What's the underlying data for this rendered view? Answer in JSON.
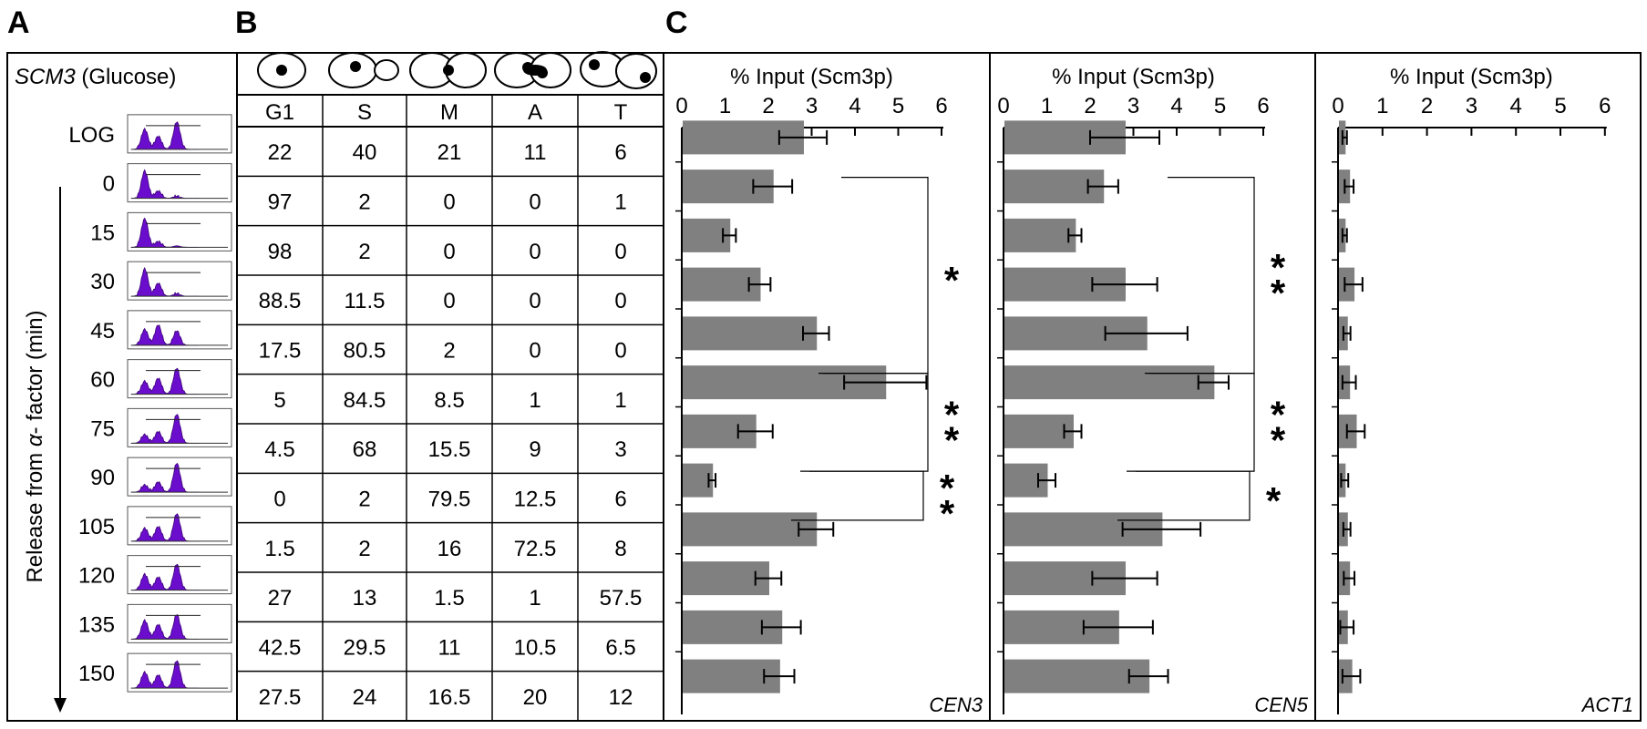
{
  "panel_letters": {
    "a": "A",
    "b": "B",
    "c": "C"
  },
  "panel_a": {
    "title_gene": "SCM3",
    "title_condition": " (Glucose)",
    "ylabel_pre": "Release from ",
    "ylabel_symbol": "α",
    "ylabel_post": "- factor (min)",
    "row_labels": [
      "LOG",
      "0",
      "15",
      "30",
      "45",
      "60",
      "75",
      "90",
      "105",
      "120",
      "135",
      "150"
    ],
    "histogram_color": "#6a0dcc",
    "facs_profiles": [
      [
        [
          0.08,
          0.7
        ],
        [
          0.16,
          0.45
        ],
        [
          0.27,
          0.95
        ]
      ],
      [
        [
          0.08,
          0.95
        ],
        [
          0.16,
          0.25
        ],
        [
          0.27,
          0.08
        ]
      ],
      [
        [
          0.08,
          1.0
        ],
        [
          0.16,
          0.2
        ],
        [
          0.27,
          0.05
        ]
      ],
      [
        [
          0.08,
          0.95
        ],
        [
          0.16,
          0.45
        ],
        [
          0.27,
          0.1
        ]
      ],
      [
        [
          0.08,
          0.55
        ],
        [
          0.16,
          0.7
        ],
        [
          0.27,
          0.5
        ]
      ],
      [
        [
          0.08,
          0.45
        ],
        [
          0.16,
          0.55
        ],
        [
          0.27,
          0.9
        ]
      ],
      [
        [
          0.08,
          0.3
        ],
        [
          0.16,
          0.4
        ],
        [
          0.27,
          1.0
        ]
      ],
      [
        [
          0.08,
          0.25
        ],
        [
          0.16,
          0.35
        ],
        [
          0.27,
          1.0
        ]
      ],
      [
        [
          0.08,
          0.45
        ],
        [
          0.16,
          0.5
        ],
        [
          0.27,
          0.95
        ]
      ],
      [
        [
          0.08,
          0.55
        ],
        [
          0.16,
          0.45
        ],
        [
          0.27,
          0.9
        ]
      ],
      [
        [
          0.08,
          0.65
        ],
        [
          0.16,
          0.5
        ],
        [
          0.27,
          0.85
        ]
      ],
      [
        [
          0.08,
          0.55
        ],
        [
          0.16,
          0.45
        ],
        [
          0.27,
          0.95
        ]
      ]
    ]
  },
  "panel_b": {
    "columns": [
      "G1",
      "S",
      "M",
      "A",
      "T"
    ],
    "rows": [
      [
        "22",
        "40",
        "21",
        "11",
        "6"
      ],
      [
        "97",
        "2",
        "0",
        "0",
        "1"
      ],
      [
        "98",
        "2",
        "0",
        "0",
        "0"
      ],
      [
        "88.5",
        "11.5",
        "0",
        "0",
        "0"
      ],
      [
        "17.5",
        "80.5",
        "2",
        "0",
        "0"
      ],
      [
        "5",
        "84.5",
        "8.5",
        "1",
        "1"
      ],
      [
        "4.5",
        "68",
        "15.5",
        "9",
        "3"
      ],
      [
        "0",
        "2",
        "79.5",
        "12.5",
        "6"
      ],
      [
        "1.5",
        "2",
        "16",
        "72.5",
        "8"
      ],
      [
        "27",
        "13",
        "1.5",
        "1",
        "57.5"
      ],
      [
        "42.5",
        "29.5",
        "11",
        "10.5",
        "6.5"
      ],
      [
        "27.5",
        "24",
        "16.5",
        "20",
        "12"
      ]
    ]
  },
  "chart_data": [
    {
      "type": "bar",
      "orientation": "horizontal",
      "title": "% Input (Scm3p)",
      "panel_label": "CEN3",
      "categories": [
        "LOG",
        "0",
        "15",
        "30",
        "45",
        "60",
        "75",
        "90",
        "105",
        "120",
        "135",
        "150"
      ],
      "values": [
        2.8,
        2.1,
        1.1,
        1.8,
        3.1,
        4.7,
        1.7,
        0.7,
        3.1,
        2.0,
        2.3,
        2.25
      ],
      "errors": [
        0.55,
        0.45,
        0.15,
        0.25,
        0.3,
        0.95,
        0.4,
        0.08,
        0.4,
        0.3,
        0.45,
        0.35
      ],
      "xlim": [
        0,
        6
      ],
      "ticks": [
        "0",
        "1",
        "2",
        "3",
        "4",
        "5",
        "6"
      ],
      "bar_color": "#808080",
      "significance": [
        {
          "from": "0",
          "to": "60",
          "label": "*"
        },
        {
          "from": "60",
          "to": "90",
          "label": "**"
        },
        {
          "from": "90",
          "to": "105",
          "label": "**"
        }
      ]
    },
    {
      "type": "bar",
      "orientation": "horizontal",
      "title": "% Input (Scm3p)",
      "panel_label": "CEN5",
      "categories": [
        "LOG",
        "0",
        "15",
        "30",
        "45",
        "60",
        "75",
        "90",
        "105",
        "120",
        "135",
        "150"
      ],
      "values": [
        2.8,
        2.3,
        1.65,
        2.8,
        3.3,
        4.85,
        1.6,
        1.0,
        3.65,
        2.8,
        2.65,
        3.35
      ],
      "errors": [
        0.8,
        0.35,
        0.15,
        0.75,
        0.95,
        0.35,
        0.2,
        0.2,
        0.9,
        0.75,
        0.8,
        0.45
      ],
      "xlim": [
        0,
        6
      ],
      "ticks": [
        "0",
        "1",
        "2",
        "3",
        "4",
        "5",
        "6"
      ],
      "bar_color": "#808080",
      "significance": [
        {
          "from": "0",
          "to": "60",
          "label": "**"
        },
        {
          "from": "60",
          "to": "90",
          "label": "**"
        },
        {
          "from": "90",
          "to": "105",
          "label": "*"
        }
      ]
    },
    {
      "type": "bar",
      "orientation": "horizontal",
      "title": "% Input (Scm3p)",
      "panel_label": "ACT1",
      "categories": [
        "LOG",
        "0",
        "15",
        "30",
        "45",
        "60",
        "75",
        "90",
        "105",
        "120",
        "135",
        "150"
      ],
      "values": [
        0.15,
        0.25,
        0.15,
        0.35,
        0.2,
        0.25,
        0.4,
        0.15,
        0.2,
        0.25,
        0.2,
        0.3
      ],
      "errors": [
        0.05,
        0.1,
        0.05,
        0.2,
        0.08,
        0.15,
        0.2,
        0.08,
        0.08,
        0.12,
        0.15,
        0.2
      ],
      "xlim": [
        0,
        6
      ],
      "ticks": [
        "0",
        "1",
        "2",
        "3",
        "4",
        "5",
        "6"
      ],
      "bar_color": "#808080",
      "significance": []
    }
  ]
}
